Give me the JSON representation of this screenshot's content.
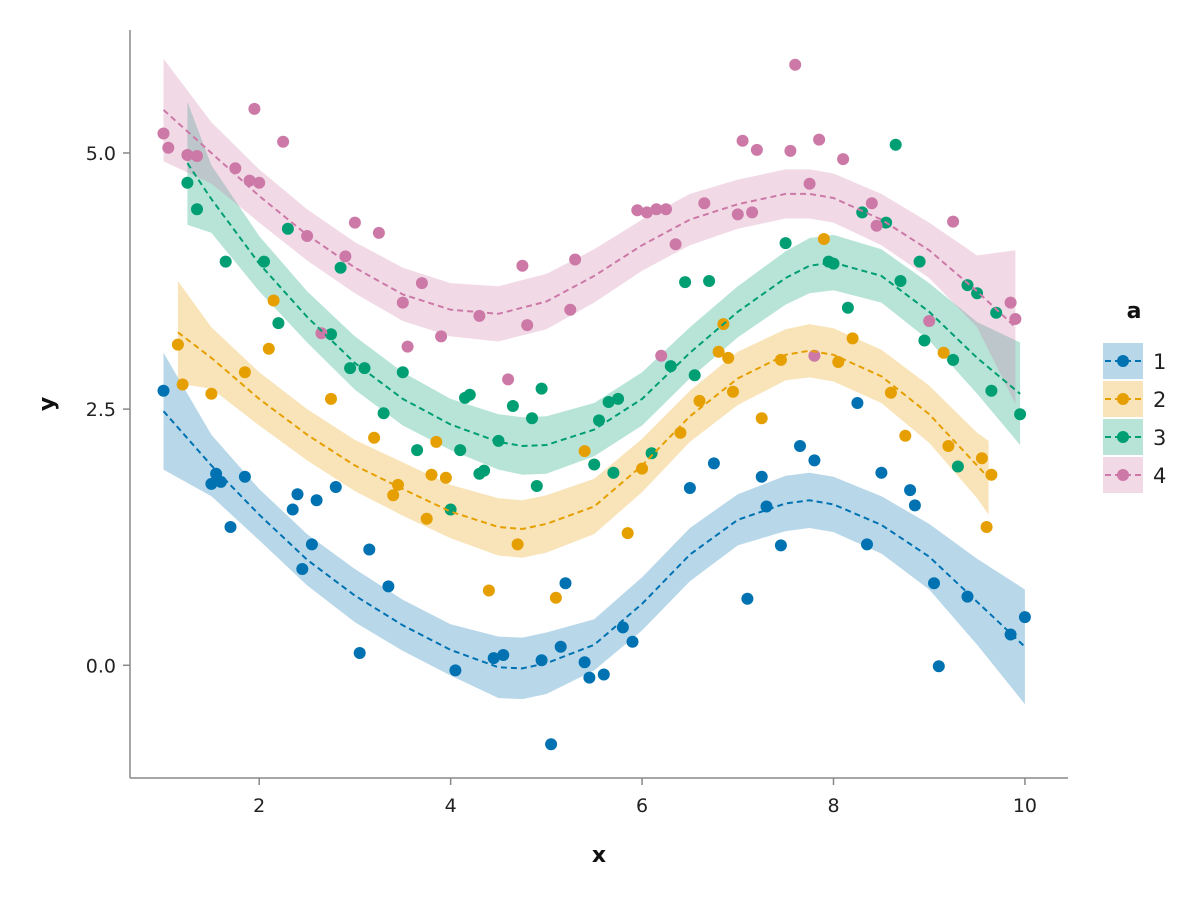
{
  "chart_data": {
    "type": "scatter",
    "title": "",
    "xlabel": "x",
    "ylabel": "y",
    "xlim": [
      0.65,
      10.45
    ],
    "ylim": [
      -1.1,
      6.2
    ],
    "x_ticks": [
      2,
      4,
      6,
      8,
      10
    ],
    "x_tick_labels": [
      "2",
      "4",
      "6",
      "8",
      "10"
    ],
    "y_ticks": [
      0.0,
      2.5,
      5.0
    ],
    "y_tick_labels": [
      "0.0",
      "2.5",
      "5.0"
    ],
    "grid": false,
    "legend": {
      "title": "a",
      "position": "right"
    },
    "series": [
      {
        "name": "1",
        "color": "#0072B2",
        "points": [
          [
            1.0,
            2.68
          ],
          [
            1.5,
            1.77
          ],
          [
            1.55,
            1.87
          ],
          [
            1.6,
            1.79
          ],
          [
            1.7,
            1.35
          ],
          [
            1.85,
            1.84
          ],
          [
            2.35,
            1.52
          ],
          [
            2.4,
            1.67
          ],
          [
            2.45,
            0.94
          ],
          [
            2.55,
            1.18
          ],
          [
            2.6,
            1.61
          ],
          [
            2.8,
            1.74
          ],
          [
            3.05,
            0.12
          ],
          [
            3.15,
            1.13
          ],
          [
            3.35,
            0.77
          ],
          [
            4.05,
            -0.05
          ],
          [
            4.45,
            0.07
          ],
          [
            4.55,
            0.1
          ],
          [
            4.95,
            0.05
          ],
          [
            5.05,
            -0.77
          ],
          [
            5.15,
            0.18
          ],
          [
            5.2,
            0.8
          ],
          [
            5.4,
            0.03
          ],
          [
            5.45,
            -0.12
          ],
          [
            5.6,
            -0.09
          ],
          [
            5.8,
            0.37
          ],
          [
            5.9,
            0.23
          ],
          [
            6.5,
            1.73
          ],
          [
            6.75,
            1.97
          ],
          [
            7.1,
            0.65
          ],
          [
            7.25,
            1.84
          ],
          [
            7.3,
            1.55
          ],
          [
            7.45,
            1.17
          ],
          [
            7.65,
            2.14
          ],
          [
            7.8,
            2.0
          ],
          [
            8.25,
            2.56
          ],
          [
            8.35,
            1.18
          ],
          [
            8.5,
            1.88
          ],
          [
            8.8,
            1.71
          ],
          [
            8.85,
            1.56
          ],
          [
            9.05,
            0.8
          ],
          [
            9.1,
            -0.01
          ],
          [
            9.4,
            0.67
          ],
          [
            9.85,
            0.3
          ],
          [
            10.0,
            0.47
          ]
        ],
        "fit": [
          [
            1.0,
            2.48
          ],
          [
            1.5,
            1.95
          ],
          [
            2.0,
            1.47
          ],
          [
            2.5,
            1.03
          ],
          [
            3.0,
            0.68
          ],
          [
            3.5,
            0.39
          ],
          [
            4.0,
            0.15
          ],
          [
            4.5,
            -0.02
          ],
          [
            4.75,
            -0.03
          ],
          [
            5.0,
            0.02
          ],
          [
            5.5,
            0.2
          ],
          [
            6.0,
            0.6
          ],
          [
            6.5,
            1.08
          ],
          [
            7.0,
            1.42
          ],
          [
            7.5,
            1.58
          ],
          [
            7.75,
            1.61
          ],
          [
            8.0,
            1.57
          ],
          [
            8.5,
            1.37
          ],
          [
            9.0,
            1.06
          ],
          [
            9.5,
            0.62
          ],
          [
            10.0,
            0.18
          ]
        ],
        "band_halfwidth": [
          0.57,
          0.3,
          0.25,
          0.25,
          0.26,
          0.25,
          0.25,
          0.3,
          0.3,
          0.3,
          0.25,
          0.26,
          0.26,
          0.25,
          0.27,
          0.27,
          0.27,
          0.28,
          0.32,
          0.42,
          0.56
        ]
      },
      {
        "name": "2",
        "color": "#E69F00",
        "points": [
          [
            1.15,
            3.13
          ],
          [
            1.2,
            2.74
          ],
          [
            1.5,
            2.65
          ],
          [
            1.85,
            2.86
          ],
          [
            2.1,
            3.09
          ],
          [
            2.15,
            3.56
          ],
          [
            2.75,
            2.6
          ],
          [
            3.2,
            2.22
          ],
          [
            3.4,
            1.66
          ],
          [
            3.45,
            1.76
          ],
          [
            3.75,
            1.43
          ],
          [
            3.8,
            1.86
          ],
          [
            3.85,
            2.18
          ],
          [
            3.95,
            1.83
          ],
          [
            4.4,
            0.73
          ],
          [
            4.7,
            1.18
          ],
          [
            5.1,
            0.66
          ],
          [
            5.4,
            2.09
          ],
          [
            5.85,
            1.29
          ],
          [
            6.0,
            1.92
          ],
          [
            6.4,
            2.27
          ],
          [
            6.6,
            2.58
          ],
          [
            6.8,
            3.06
          ],
          [
            6.85,
            3.33
          ],
          [
            6.9,
            3.0
          ],
          [
            6.95,
            2.67
          ],
          [
            7.25,
            2.41
          ],
          [
            7.45,
            2.98
          ],
          [
            7.9,
            4.16
          ],
          [
            8.05,
            2.96
          ],
          [
            8.2,
            3.19
          ],
          [
            8.6,
            2.66
          ],
          [
            8.75,
            2.24
          ],
          [
            9.15,
            3.05
          ],
          [
            9.2,
            2.14
          ],
          [
            9.55,
            2.02
          ],
          [
            9.6,
            1.35
          ],
          [
            9.65,
            1.86
          ]
        ],
        "fit": [
          [
            1.15,
            3.25
          ],
          [
            1.5,
            3.0
          ],
          [
            2.0,
            2.6
          ],
          [
            2.5,
            2.25
          ],
          [
            3.0,
            1.95
          ],
          [
            3.5,
            1.72
          ],
          [
            4.0,
            1.5
          ],
          [
            4.5,
            1.35
          ],
          [
            4.75,
            1.33
          ],
          [
            5.0,
            1.38
          ],
          [
            5.5,
            1.55
          ],
          [
            6.0,
            1.95
          ],
          [
            6.5,
            2.43
          ],
          [
            7.0,
            2.8
          ],
          [
            7.5,
            3.03
          ],
          [
            7.75,
            3.07
          ],
          [
            8.0,
            3.03
          ],
          [
            8.5,
            2.82
          ],
          [
            9.0,
            2.45
          ],
          [
            9.5,
            1.95
          ],
          [
            9.62,
            1.83
          ]
        ],
        "band_halfwidth": [
          0.5,
          0.3,
          0.26,
          0.25,
          0.25,
          0.26,
          0.26,
          0.28,
          0.28,
          0.28,
          0.27,
          0.26,
          0.25,
          0.26,
          0.25,
          0.26,
          0.26,
          0.26,
          0.28,
          0.32,
          0.36
        ]
      },
      {
        "name": "3",
        "color": "#009E73",
        "points": [
          [
            1.25,
            4.71
          ],
          [
            1.35,
            4.45
          ],
          [
            1.65,
            3.94
          ],
          [
            2.05,
            3.94
          ],
          [
            2.2,
            3.34
          ],
          [
            2.3,
            4.26
          ],
          [
            2.75,
            3.23
          ],
          [
            2.85,
            3.88
          ],
          [
            2.95,
            2.9
          ],
          [
            3.1,
            2.9
          ],
          [
            3.3,
            2.46
          ],
          [
            3.5,
            2.86
          ],
          [
            3.65,
            2.1
          ],
          [
            4.0,
            1.52
          ],
          [
            4.1,
            2.1
          ],
          [
            4.15,
            2.61
          ],
          [
            4.2,
            2.64
          ],
          [
            4.3,
            1.87
          ],
          [
            4.35,
            1.9
          ],
          [
            4.5,
            2.19
          ],
          [
            4.65,
            2.53
          ],
          [
            4.85,
            2.41
          ],
          [
            4.9,
            1.75
          ],
          [
            4.95,
            2.7
          ],
          [
            5.5,
            1.96
          ],
          [
            5.55,
            2.39
          ],
          [
            5.65,
            2.57
          ],
          [
            5.7,
            1.88
          ],
          [
            5.75,
            2.6
          ],
          [
            6.1,
            2.07
          ],
          [
            6.3,
            2.92
          ],
          [
            6.45,
            3.74
          ],
          [
            6.55,
            2.83
          ],
          [
            6.7,
            3.75
          ],
          [
            7.5,
            4.12
          ],
          [
            7.95,
            3.94
          ],
          [
            8.0,
            3.92
          ],
          [
            8.15,
            3.49
          ],
          [
            8.3,
            4.42
          ],
          [
            8.55,
            4.32
          ],
          [
            8.65,
            5.08
          ],
          [
            8.7,
            3.75
          ],
          [
            8.9,
            3.94
          ],
          [
            8.95,
            3.17
          ],
          [
            9.25,
            2.98
          ],
          [
            9.3,
            1.94
          ],
          [
            9.4,
            3.71
          ],
          [
            9.5,
            3.63
          ],
          [
            9.65,
            2.68
          ],
          [
            9.7,
            3.44
          ],
          [
            9.95,
            2.45
          ]
        ],
        "fit": [
          [
            1.25,
            4.9
          ],
          [
            1.5,
            4.55
          ],
          [
            2.0,
            3.92
          ],
          [
            2.5,
            3.4
          ],
          [
            3.0,
            2.95
          ],
          [
            3.5,
            2.6
          ],
          [
            4.0,
            2.35
          ],
          [
            4.5,
            2.18
          ],
          [
            4.75,
            2.14
          ],
          [
            5.0,
            2.15
          ],
          [
            5.5,
            2.3
          ],
          [
            6.0,
            2.6
          ],
          [
            6.5,
            3.05
          ],
          [
            7.0,
            3.45
          ],
          [
            7.5,
            3.78
          ],
          [
            7.75,
            3.9
          ],
          [
            8.0,
            3.93
          ],
          [
            8.5,
            3.8
          ],
          [
            9.0,
            3.45
          ],
          [
            9.5,
            3.0
          ],
          [
            9.95,
            2.65
          ]
        ],
        "band_halfwidth": [
          0.6,
          0.33,
          0.27,
          0.25,
          0.26,
          0.26,
          0.25,
          0.27,
          0.28,
          0.28,
          0.26,
          0.26,
          0.25,
          0.25,
          0.26,
          0.27,
          0.27,
          0.26,
          0.28,
          0.35,
          0.5
        ]
      },
      {
        "name": "4",
        "color": "#CC79A7",
        "points": [
          [
            1.0,
            5.19
          ],
          [
            1.05,
            5.05
          ],
          [
            1.25,
            4.98
          ],
          [
            1.35,
            4.97
          ],
          [
            1.75,
            4.85
          ],
          [
            1.9,
            4.73
          ],
          [
            1.95,
            5.43
          ],
          [
            2.0,
            4.71
          ],
          [
            2.25,
            5.11
          ],
          [
            2.5,
            4.19
          ],
          [
            2.65,
            3.24
          ],
          [
            2.9,
            3.99
          ],
          [
            3.0,
            4.32
          ],
          [
            3.25,
            4.22
          ],
          [
            3.5,
            3.54
          ],
          [
            3.55,
            3.11
          ],
          [
            3.7,
            3.73
          ],
          [
            3.9,
            3.21
          ],
          [
            4.3,
            3.41
          ],
          [
            4.6,
            2.79
          ],
          [
            4.75,
            3.9
          ],
          [
            4.8,
            3.32
          ],
          [
            5.25,
            3.47
          ],
          [
            5.3,
            3.96
          ],
          [
            5.95,
            4.44
          ],
          [
            6.05,
            4.42
          ],
          [
            6.15,
            4.45
          ],
          [
            6.25,
            4.45
          ],
          [
            6.35,
            4.11
          ],
          [
            6.2,
            3.02
          ],
          [
            6.65,
            4.51
          ],
          [
            7.05,
            5.12
          ],
          [
            7.0,
            4.4
          ],
          [
            7.15,
            4.42
          ],
          [
            7.2,
            5.03
          ],
          [
            7.55,
            5.02
          ],
          [
            7.6,
            5.86
          ],
          [
            7.75,
            4.7
          ],
          [
            7.8,
            3.02
          ],
          [
            7.85,
            5.13
          ],
          [
            8.1,
            4.94
          ],
          [
            8.4,
            4.51
          ],
          [
            8.45,
            4.29
          ],
          [
            9.0,
            3.36
          ],
          [
            9.25,
            4.33
          ],
          [
            9.85,
            3.54
          ],
          [
            9.9,
            3.38
          ]
        ],
        "fit": [
          [
            1.0,
            5.42
          ],
          [
            1.5,
            5.0
          ],
          [
            2.0,
            4.58
          ],
          [
            2.5,
            4.2
          ],
          [
            3.0,
            3.88
          ],
          [
            3.5,
            3.62
          ],
          [
            4.0,
            3.47
          ],
          [
            4.5,
            3.43
          ],
          [
            5.0,
            3.55
          ],
          [
            5.5,
            3.8
          ],
          [
            6.0,
            4.1
          ],
          [
            6.5,
            4.35
          ],
          [
            7.0,
            4.5
          ],
          [
            7.5,
            4.6
          ],
          [
            7.75,
            4.6
          ],
          [
            8.0,
            4.56
          ],
          [
            8.5,
            4.35
          ],
          [
            9.0,
            4.05
          ],
          [
            9.5,
            3.65
          ],
          [
            9.9,
            3.3
          ]
        ],
        "band_halfwidth": [
          0.5,
          0.3,
          0.26,
          0.25,
          0.25,
          0.26,
          0.26,
          0.27,
          0.27,
          0.26,
          0.25,
          0.25,
          0.24,
          0.24,
          0.24,
          0.24,
          0.25,
          0.27,
          0.35,
          0.75
        ]
      }
    ]
  }
}
